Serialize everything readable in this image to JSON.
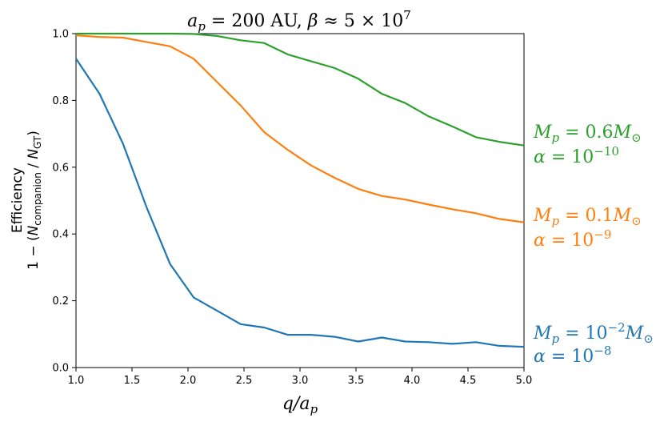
{
  "chart_data": {
    "type": "line",
    "title": "a_p = 200 AU,  β ≈ 5 × 10^7",
    "xlabel": "q/a_p",
    "ylabel": [
      "Efficiency",
      "1 − (N_companion / N_GT)"
    ],
    "xlim": [
      1.0,
      5.0
    ],
    "ylim": [
      0.0,
      1.0
    ],
    "xticks": [
      "1.0",
      "1.5",
      "2.0",
      "2.5",
      "3.0",
      "3.5",
      "4.0",
      "4.5",
      "5.0"
    ],
    "yticks": [
      "0.0",
      "0.2",
      "0.4",
      "0.6",
      "0.8",
      "1.0"
    ],
    "grid": false,
    "series": [
      {
        "color": "#2ca02c",
        "annotation": [
          "M_p = 0.6M_⊙",
          "α = 10^−10"
        ],
        "x": [
          1.0,
          1.21,
          1.42,
          1.63,
          1.84,
          2.05,
          2.26,
          2.47,
          2.68,
          2.89,
          3.1,
          3.31,
          3.52,
          3.73,
          3.94,
          4.15,
          4.36,
          4.57,
          4.78,
          5.0
        ],
        "y": [
          1.0,
          1.0,
          1.0,
          1.0,
          1.0,
          0.999,
          0.993,
          0.98,
          0.972,
          0.938,
          0.917,
          0.897,
          0.865,
          0.82,
          0.792,
          0.752,
          0.722,
          0.69,
          0.676,
          0.665
        ]
      },
      {
        "color": "#ff7f0e",
        "annotation": [
          "M_p = 0.1M_⊙",
          "α = 10^−9"
        ],
        "x": [
          1.0,
          1.21,
          1.42,
          1.63,
          1.84,
          2.05,
          2.26,
          2.47,
          2.68,
          2.89,
          3.1,
          3.31,
          3.52,
          3.73,
          3.94,
          4.15,
          4.36,
          4.57,
          4.78,
          5.0
        ],
        "y": [
          0.995,
          0.99,
          0.988,
          0.975,
          0.962,
          0.925,
          0.855,
          0.785,
          0.705,
          0.652,
          0.605,
          0.568,
          0.535,
          0.514,
          0.503,
          0.488,
          0.474,
          0.462,
          0.445,
          0.435
        ]
      },
      {
        "color": "#1f77b4",
        "annotation": [
          "M_p = 10^−2 M_⊙",
          "α = 10^−8"
        ],
        "x": [
          1.0,
          1.21,
          1.42,
          1.63,
          1.84,
          2.05,
          2.26,
          2.47,
          2.68,
          2.89,
          3.1,
          3.31,
          3.52,
          3.73,
          3.94,
          4.15,
          4.36,
          4.57,
          4.78,
          5.0
        ],
        "y": [
          0.925,
          0.82,
          0.67,
          0.48,
          0.31,
          0.21,
          0.17,
          0.13,
          0.12,
          0.098,
          0.098,
          0.092,
          0.078,
          0.09,
          0.078,
          0.076,
          0.071,
          0.076,
          0.065,
          0.062
        ]
      }
    ]
  }
}
